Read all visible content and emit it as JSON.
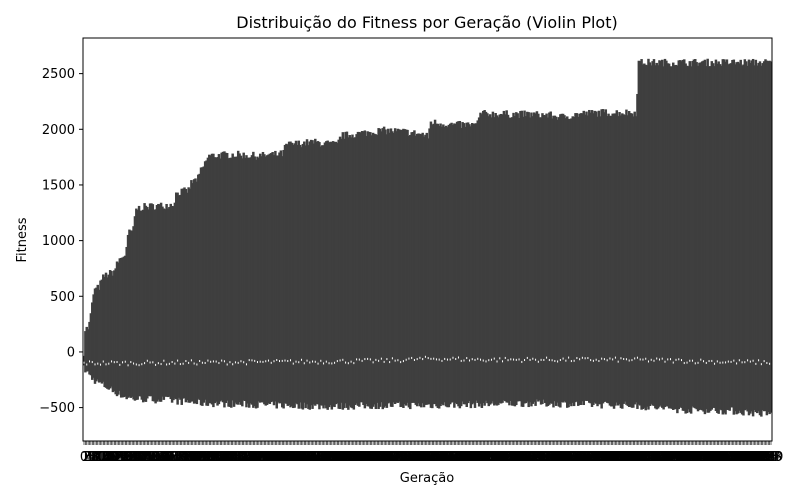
{
  "chart_data": {
    "type": "violin",
    "title": "Distribuição do Fitness por Geração (Violin Plot)",
    "xlabel": "Geração",
    "ylabel": "Fitness",
    "ylim": [
      -800,
      2820
    ],
    "yticks": [
      -500,
      0,
      500,
      1000,
      1500,
      2000,
      2500
    ],
    "n_generations": 500,
    "fill_color": "#3f3f3f",
    "median_color": "#ffffff",
    "upper_envelope": [
      [
        0,
        0
      ],
      [
        1,
        200
      ],
      [
        5,
        220
      ],
      [
        8,
        400
      ],
      [
        10,
        550
      ],
      [
        15,
        580
      ],
      [
        20,
        680
      ],
      [
        25,
        700
      ],
      [
        30,
        720
      ],
      [
        35,
        820
      ],
      [
        38,
        850
      ],
      [
        42,
        880
      ],
      [
        45,
        1070
      ],
      [
        50,
        1100
      ],
      [
        52,
        1280
      ],
      [
        58,
        1300
      ],
      [
        70,
        1310
      ],
      [
        80,
        1315
      ],
      [
        90,
        1330
      ],
      [
        93,
        1430
      ],
      [
        105,
        1450
      ],
      [
        108,
        1520
      ],
      [
        115,
        1560
      ],
      [
        118,
        1640
      ],
      [
        120,
        1660
      ],
      [
        125,
        1760
      ],
      [
        150,
        1775
      ],
      [
        175,
        1760
      ],
      [
        200,
        1780
      ],
      [
        203,
        1860
      ],
      [
        230,
        1885
      ],
      [
        255,
        1860
      ],
      [
        258,
        1940
      ],
      [
        300,
        1990
      ],
      [
        320,
        1980
      ],
      [
        340,
        1955
      ],
      [
        346,
        1930
      ],
      [
        348,
        2065
      ],
      [
        370,
        2040
      ],
      [
        395,
        2040
      ],
      [
        398,
        2140
      ],
      [
        440,
        2135
      ],
      [
        465,
        2130
      ],
      [
        480,
        2110
      ],
      [
        500,
        2140
      ],
      [
        520,
        2150
      ],
      [
        550,
        2150
      ],
      [
        555,
        2150
      ],
      [
        557,
        2600
      ],
      [
        600,
        2600
      ],
      [
        640,
        2600
      ],
      [
        680,
        2600
      ],
      [
        690,
        2600
      ]
    ],
    "lower_envelope": [
      [
        0,
        -150
      ],
      [
        10,
        -250
      ],
      [
        20,
        -300
      ],
      [
        30,
        -350
      ],
      [
        40,
        -400
      ],
      [
        50,
        -420
      ],
      [
        80,
        -430
      ],
      [
        120,
        -460
      ],
      [
        160,
        -470
      ],
      [
        200,
        -480
      ],
      [
        250,
        -490
      ],
      [
        300,
        -480
      ],
      [
        340,
        -480
      ],
      [
        400,
        -470
      ],
      [
        450,
        -460
      ],
      [
        500,
        -470
      ],
      [
        550,
        -480
      ],
      [
        600,
        -520
      ],
      [
        650,
        -530
      ],
      [
        690,
        -560
      ]
    ],
    "median_levels": [
      [
        0,
        -100
      ],
      [
        50,
        -100
      ],
      [
        100,
        -95
      ],
      [
        200,
        -90
      ],
      [
        250,
        -85
      ],
      [
        300,
        -80
      ],
      [
        350,
        -60
      ],
      [
        400,
        -70
      ],
      [
        450,
        -70
      ],
      [
        500,
        -70
      ],
      [
        550,
        -70
      ],
      [
        600,
        -80
      ],
      [
        650,
        -90
      ],
      [
        690,
        -95
      ]
    ]
  }
}
